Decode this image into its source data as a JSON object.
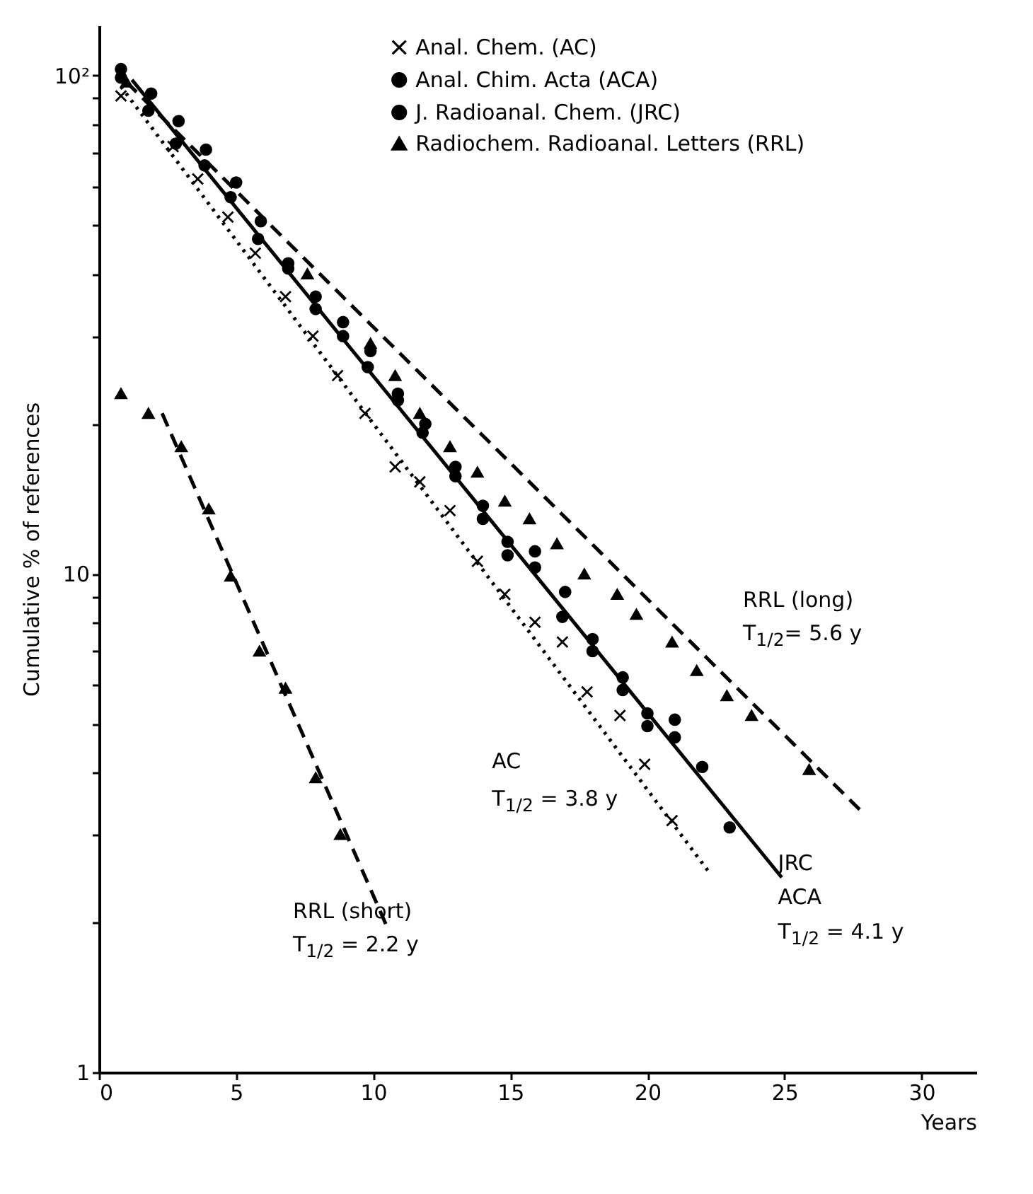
{
  "chart_data": {
    "type": "scatter",
    "xlabel": "Years",
    "ylabel": "Cumulative % of references",
    "log": "y",
    "xlim": [
      0,
      32
    ],
    "xticks": [
      0,
      5,
      10,
      15,
      20,
      25,
      30
    ],
    "ylim": [
      1,
      126
    ],
    "yticks": [
      1,
      {
        "value": 2,
        "label": null
      },
      {
        "value": 3,
        "label": null
      },
      {
        "value": 4,
        "label": null
      },
      {
        "value": 5,
        "label": null
      },
      {
        "value": 6,
        "label": null
      },
      {
        "value": 7,
        "label": null
      },
      {
        "value": 8,
        "label": null
      },
      {
        "value": 9,
        "label": null
      },
      10,
      {
        "value": 20,
        "label": null
      },
      {
        "value": 30,
        "label": null
      },
      {
        "value": 40,
        "label": null
      },
      {
        "value": 50,
        "label": null
      },
      {
        "value": 60,
        "label": null
      },
      {
        "value": 70,
        "label": null
      },
      {
        "value": 80,
        "label": null
      },
      {
        "value": 90,
        "label": null
      },
      {
        "value": 100,
        "label": "10²"
      }
    ],
    "grid": false,
    "legend": "top",
    "series": [
      {
        "type": "scatter",
        "name": "Anal. Chem. (AC)",
        "color": "#000000",
        "marker": "cross",
        "x": [
          0.8,
          2.7,
          3.6,
          4.7,
          5.7,
          6.8,
          7.8,
          8.7,
          9.7,
          10.8,
          11.7,
          12.8,
          13.8,
          14.8,
          15.9,
          16.9,
          17.8,
          19.0,
          19.9,
          20.9
        ],
        "values": [
          91,
          72,
          62,
          52,
          44,
          36,
          30,
          25,
          21,
          16.4,
          15.3,
          13.4,
          10.6,
          9.1,
          8,
          7.3,
          5.8,
          5.2,
          4.15,
          3.2
        ]
      },
      {
        "type": "scatter",
        "name": "Anal. Chim. Acta (ACA)",
        "color": "#000000",
        "marker": "circle",
        "x": [
          0.8,
          1.8,
          2.8,
          3.85,
          4.8,
          5.8,
          6.9,
          7.9,
          8.9,
          9.8,
          10.9,
          11.9,
          13.0,
          14.0,
          14.9,
          15.9,
          17.0,
          18.0,
          19.1,
          20.0,
          21.0
        ],
        "values": [
          99,
          85,
          73,
          66,
          57,
          47,
          41,
          34,
          30,
          26,
          23,
          20,
          16.4,
          13.7,
          11.6,
          11.1,
          9.2,
          7.4,
          6.2,
          5.25,
          4.7
        ]
      },
      {
        "type": "scatter",
        "name": "J. Radioanal. Chem. (JRC)",
        "color": "#000000",
        "marker": "circle",
        "x": [
          0.8,
          1.9,
          2.9,
          3.9,
          5.0,
          5.9,
          6.9,
          7.9,
          8.9,
          9.9,
          10.9,
          11.8,
          13.0,
          14.0,
          14.9,
          15.9,
          16.9,
          18.0,
          19.1,
          20.0,
          21.0,
          22.0,
          23.0
        ],
        "values": [
          103,
          92,
          81,
          71,
          61,
          51,
          42,
          36,
          32,
          28,
          22.3,
          19.2,
          15.7,
          12.9,
          10.9,
          10.3,
          8.2,
          7.0,
          5.85,
          4.95,
          5.1,
          4.1,
          3.1
        ]
      },
      {
        "type": "scatter",
        "name": "Radiochem. Radioanal. Letters (RRL)",
        "color": "#000000",
        "marker": "triangle",
        "x": [
          1,
          7.6,
          9.9,
          10.8,
          11.7,
          12.8,
          13.8,
          14.8,
          15.7,
          16.7,
          17.7,
          18.9,
          19.6,
          20.9,
          21.8,
          22.9,
          23.8,
          25.9
        ],
        "values": [
          97,
          40,
          29,
          25,
          21,
          18,
          16,
          14,
          12.9,
          11.5,
          10,
          9.1,
          8.3,
          7.3,
          6.4,
          5.7,
          5.2,
          4.05
        ]
      },
      {
        "type": "scatter",
        "color": "#000000",
        "marker": "triangle",
        "x": [
          0.8,
          1.8,
          3,
          4,
          4.8,
          5.85,
          6.8,
          7.9,
          8.8
        ],
        "values": [
          23,
          21,
          18,
          13.5,
          9.9,
          7,
          5.9,
          3.9,
          3.0
        ]
      },
      {
        "type": "line",
        "color": "#000000",
        "line_style": "dotted",
        "x": [
          0.8,
          22.3
        ],
        "values": [
          95,
          2.5
        ]
      },
      {
        "type": "line",
        "color": "#000000",
        "line_style": "solid",
        "x": [
          1.2,
          24.9
        ],
        "values": [
          98,
          2.46
        ]
      },
      {
        "type": "line",
        "color": "#000000",
        "line_style": "dashed",
        "x": [
          1,
          27.9
        ],
        "values": [
          97,
          3.3
        ]
      },
      {
        "type": "line",
        "color": "#000000",
        "line_style": "dashed",
        "x": [
          2.3,
          10.5
        ],
        "values": [
          21,
          1.96
        ]
      }
    ],
    "annotations": [
      "RRL (long)",
      "T$_{1/2}$= 5.6 y",
      "AC",
      "T$_{1/2}$ = 3.8 y",
      "JRC",
      "ACA",
      "T$_{1/2}$ = 4.1 y",
      "RRL (short)",
      "T$_{1/2}$ = 2.2 y"
    ]
  }
}
